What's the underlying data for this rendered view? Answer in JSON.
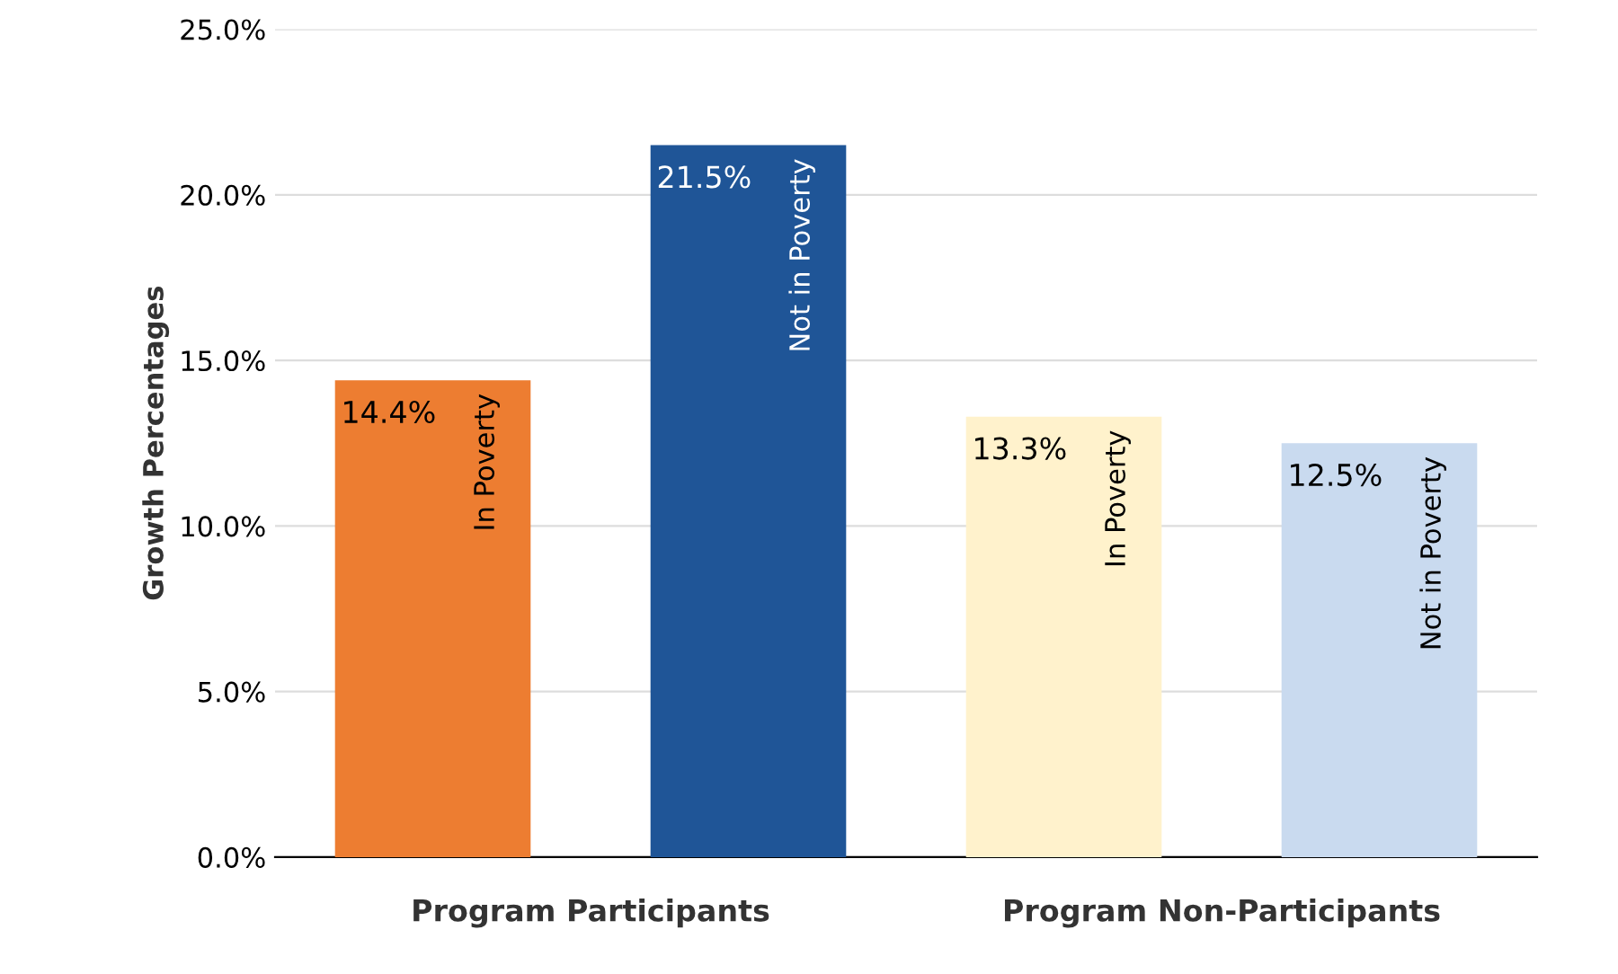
{
  "chart_data": {
    "type": "bar",
    "ylabel": "Growth Percentages",
    "categories": [
      "In Poverty",
      "Not in Poverty",
      "In Poverty",
      "Not in Poverty"
    ],
    "values": [
      14.4,
      21.5,
      13.3,
      12.5
    ],
    "colors": [
      "#ed7d31",
      "#1f5597",
      "#fff2cc",
      "#c9daef"
    ],
    "value_labels": [
      "14.4%",
      "21.5%",
      "13.3%",
      "12.5%"
    ],
    "ylim": [
      0,
      25
    ],
    "yticks": [
      {
        "value": 0,
        "label": "0.0%"
      },
      {
        "value": 5,
        "label": "5.0%"
      },
      {
        "value": 10,
        "label": "10.0%"
      },
      {
        "value": 15,
        "label": "15.0%"
      },
      {
        "value": 20,
        "label": "20.0%"
      },
      {
        "value": 25,
        "label": "25.0%"
      }
    ],
    "grid": "y",
    "annotations": [
      "Program Participants",
      "Program Non-Participants"
    ]
  }
}
